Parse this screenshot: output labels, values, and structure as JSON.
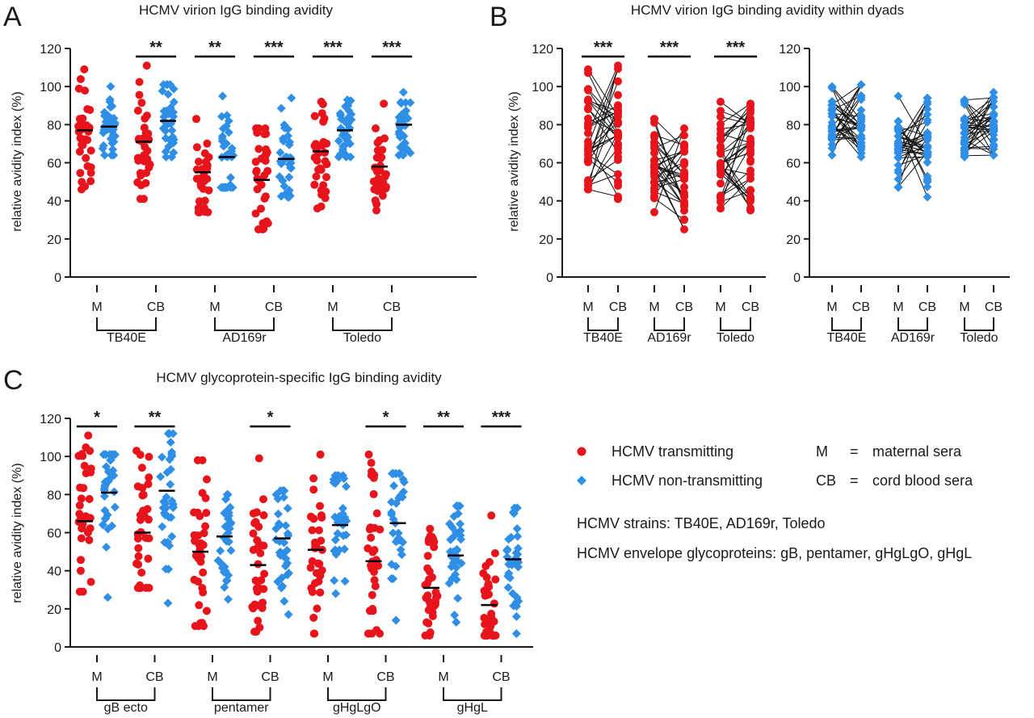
{
  "panels": [
    {
      "letter": "A",
      "title": "HCMV virion IgG binding avidity",
      "ylabel": "relative avidity index (%)"
    },
    {
      "letter": "B",
      "title": "HCMV virion IgG binding avidity within dyads",
      "ylabel": "relative avidity index (%)"
    },
    {
      "letter": "C",
      "title": "HCMV glycoprotein-specific IgG binding avidity",
      "ylabel": "relative avidity index (%)"
    }
  ],
  "legend": {
    "transmitting": "HCMV transmitting",
    "nontransmitting": "HCMV non-transmitting",
    "abbr_m": "M",
    "abbr_m_eq": "=",
    "abbr_m_desc": "maternal sera",
    "abbr_cb": "CB",
    "abbr_cb_eq": "=",
    "abbr_cb_desc": "cord blood sera",
    "strains": "HCMV strains: TB40E, AD169r, Toledo",
    "glycoproteins": "HCMV envelope glycoproteins: gB, pentamer, gHgLgO, gHgL"
  },
  "colors": {
    "transmitting": "#e8141c",
    "nontransmitting": "#2f8ee6",
    "axis": "#1a1a1a"
  },
  "chart_data": [
    {
      "panel": "A",
      "type": "scatter",
      "ylim": [
        0,
        120
      ],
      "yticks": [
        0,
        20,
        40,
        60,
        80,
        100,
        120
      ],
      "groups": [
        {
          "label": "TB40E",
          "sub": [
            {
              "tick": "M",
              "red_median": 77,
              "blue_median": 79,
              "red_range": [
                46,
                109
              ],
              "blue_range": [
                64,
                100
              ],
              "sig": ""
            },
            {
              "tick": "CB",
              "red_median": 71,
              "blue_median": 82,
              "red_range": [
                41,
                111
              ],
              "blue_range": [
                63,
                101
              ],
              "sig": "**"
            }
          ]
        },
        {
          "label": "AD169r",
          "sub": [
            {
              "tick": "M",
              "red_median": 55,
              "blue_median": 63,
              "red_range": [
                34,
                83
              ],
              "blue_range": [
                47,
                95
              ],
              "sig": "**"
            },
            {
              "tick": "CB",
              "red_median": 51,
              "blue_median": 62,
              "red_range": [
                25,
                78
              ],
              "blue_range": [
                42,
                94
              ],
              "sig": "***"
            }
          ]
        },
        {
          "label": "Toledo",
          "sub": [
            {
              "tick": "M",
              "red_median": 66,
              "blue_median": 77,
              "red_range": [
                36,
                92
              ],
              "blue_range": [
                63,
                93
              ],
              "sig": "***"
            },
            {
              "tick": "CB",
              "red_median": 58,
              "blue_median": 80,
              "red_range": [
                35,
                91
              ],
              "blue_range": [
                64,
                97
              ],
              "sig": "***"
            }
          ]
        }
      ]
    },
    {
      "panel": "B-left",
      "type": "line",
      "series": "HCMV transmitting",
      "ylim": [
        0,
        120
      ],
      "yticks": [
        0,
        20,
        40,
        60,
        80,
        100,
        120
      ],
      "groups": [
        {
          "label": "TB40E",
          "ticks": [
            "M",
            "CB"
          ],
          "m_range": [
            46,
            109
          ],
          "cb_range": [
            41,
            111
          ],
          "sig": "***"
        },
        {
          "label": "AD169r",
          "ticks": [
            "M",
            "CB"
          ],
          "m_range": [
            34,
            83
          ],
          "cb_range": [
            25,
            78
          ],
          "sig": "***"
        },
        {
          "label": "Toledo",
          "ticks": [
            "M",
            "CB"
          ],
          "m_range": [
            36,
            92
          ],
          "cb_range": [
            35,
            91
          ],
          "sig": "***"
        }
      ]
    },
    {
      "panel": "B-right",
      "type": "line",
      "series": "HCMV non-transmitting",
      "ylim": [
        0,
        120
      ],
      "yticks": [
        0,
        20,
        40,
        60,
        80,
        100,
        120
      ],
      "groups": [
        {
          "label": "TB40E",
          "ticks": [
            "M",
            "CB"
          ],
          "m_range": [
            64,
            100
          ],
          "cb_range": [
            63,
            101
          ],
          "sig": ""
        },
        {
          "label": "AD169r",
          "ticks": [
            "M",
            "CB"
          ],
          "m_range": [
            47,
            95
          ],
          "cb_range": [
            42,
            94
          ],
          "sig": ""
        },
        {
          "label": "Toledo",
          "ticks": [
            "M",
            "CB"
          ],
          "m_range": [
            63,
            93
          ],
          "cb_range": [
            64,
            97
          ],
          "sig": ""
        }
      ]
    },
    {
      "panel": "C",
      "type": "scatter",
      "ylim": [
        0,
        120
      ],
      "yticks": [
        0,
        20,
        40,
        60,
        80,
        100,
        120
      ],
      "groups": [
        {
          "label": "gB ecto",
          "sub": [
            {
              "tick": "M",
              "red_median": 66,
              "blue_median": 81,
              "red_range": [
                29,
                111
              ],
              "blue_range": [
                26,
                101
              ],
              "sig": "*"
            },
            {
              "tick": "CB",
              "red_median": 60,
              "blue_median": 82,
              "red_range": [
                31,
                103
              ],
              "blue_range": [
                23,
                112
              ],
              "sig": "**"
            }
          ]
        },
        {
          "label": "pentamer",
          "sub": [
            {
              "tick": "M",
              "red_median": 50,
              "blue_median": 58,
              "red_range": [
                11,
                98
              ],
              "blue_range": [
                25,
                80
              ],
              "sig": ""
            },
            {
              "tick": "CB",
              "red_median": 43,
              "blue_median": 57,
              "red_range": [
                8,
                99
              ],
              "blue_range": [
                17,
                82
              ],
              "sig": "*"
            }
          ]
        },
        {
          "label": "gHgLgO",
          "sub": [
            {
              "tick": "M",
              "red_median": 51,
              "blue_median": 64,
              "red_range": [
                7,
                101
              ],
              "blue_range": [
                28,
                90
              ],
              "sig": ""
            },
            {
              "tick": "CB",
              "red_median": 45,
              "blue_median": 65,
              "red_range": [
                7,
                101
              ],
              "blue_range": [
                14,
                91
              ],
              "sig": "*"
            }
          ]
        },
        {
          "label": "gHgL",
          "sub": [
            {
              "tick": "M",
              "red_median": 31,
              "blue_median": 48,
              "red_range": [
                6,
                62
              ],
              "blue_range": [
                13,
                74
              ],
              "sig": "**"
            },
            {
              "tick": "CB",
              "red_median": 22,
              "blue_median": 46,
              "red_range": [
                6,
                69
              ],
              "blue_range": [
                7,
                73
              ],
              "sig": "***"
            }
          ]
        }
      ]
    }
  ]
}
